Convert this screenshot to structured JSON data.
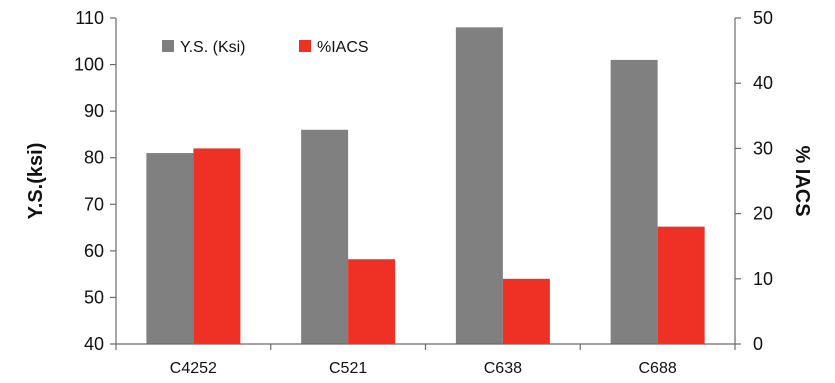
{
  "chart_data": {
    "type": "bar",
    "categories": [
      "C4252",
      "C521",
      "C638",
      "C688"
    ],
    "series": [
      {
        "name": "Y.S. (Ksi)",
        "axis": "left",
        "color": "#808080",
        "values": [
          81,
          86,
          108,
          101
        ]
      },
      {
        "name": "%IACS",
        "axis": "right",
        "color": "#ee3124",
        "values": [
          30,
          13,
          10,
          18
        ]
      }
    ],
    "ylabel": "Y.S.(ksi)",
    "y2label": "% IACS",
    "ylim": [
      40,
      110
    ],
    "y2lim": [
      0,
      50
    ],
    "yticks": [
      "40",
      "50",
      "60",
      "70",
      "80",
      "90",
      "100",
      "110"
    ],
    "y2ticks": [
      "0",
      "10",
      "20",
      "30",
      "40",
      "50"
    ],
    "legend_position": "top-left",
    "grid": false
  }
}
